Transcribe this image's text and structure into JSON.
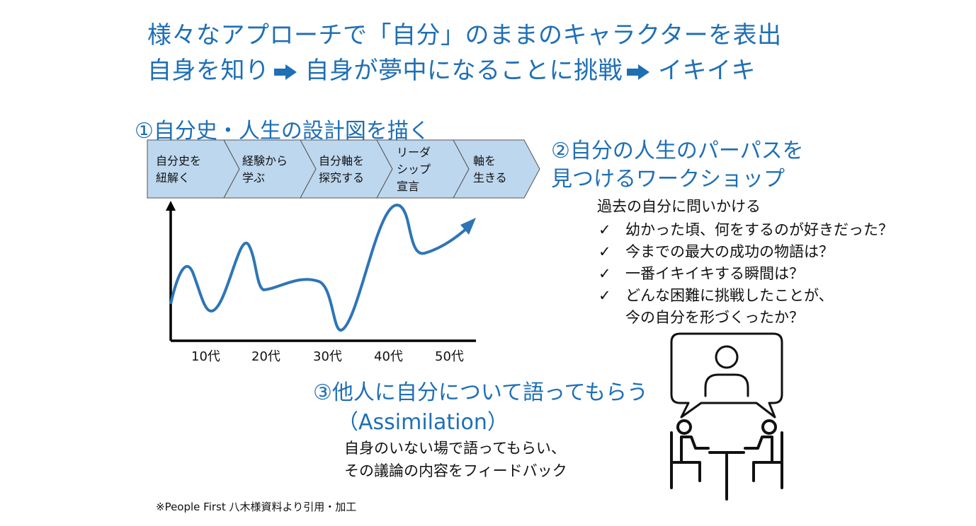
{
  "headline": {
    "line1": "様々なアプローチで「自分」のままのキャラクターを表出",
    "line2_a": "自身を知り",
    "line2_b": "自身が夢中になることに挑戦",
    "line2_c": "イキイキ"
  },
  "section1": {
    "title": "①自分史・人生の設計図を描く",
    "steps": [
      {
        "l1": "自分史を",
        "l2": "紐解く"
      },
      {
        "l1": "経験から",
        "l2": "学ぶ"
      },
      {
        "l1": "自分軸を",
        "l2": "探究する"
      },
      {
        "l1": "リーダ",
        "l2": "シップ",
        "l3": "宣言"
      },
      {
        "l1": "軸を",
        "l2": "生きる"
      }
    ],
    "x_ticks": [
      "10代",
      "20代",
      "30代",
      "40代",
      "50代"
    ]
  },
  "section2": {
    "title1": "②自分の人生のパーパスを",
    "title2": "見つけるワークショップ",
    "prompt": "過去の自分に問いかける",
    "check_mark": "✓",
    "questions": [
      "幼かった頃、何をするのが好きだった？",
      "今までの最大の成功の物語は？",
      "一番イキイキする瞬間は？",
      "どんな困難に挑戦したことが、"
    ],
    "question4_cont": "今の自分を形づくったか？"
  },
  "section3": {
    "title1": "③他人に自分について語ってもらう",
    "title2": "（Assimilation）",
    "desc1": "自身のいない場で語ってもらい、",
    "desc2": "その議論の内容をフィードバック"
  },
  "note": "※People First 八木様資料より引用・加工",
  "colors": {
    "accent": "#1f6fb5",
    "step_fill": "#bdd7ee",
    "line_blue": "#2e75b6",
    "icon_dark": "#111111"
  }
}
